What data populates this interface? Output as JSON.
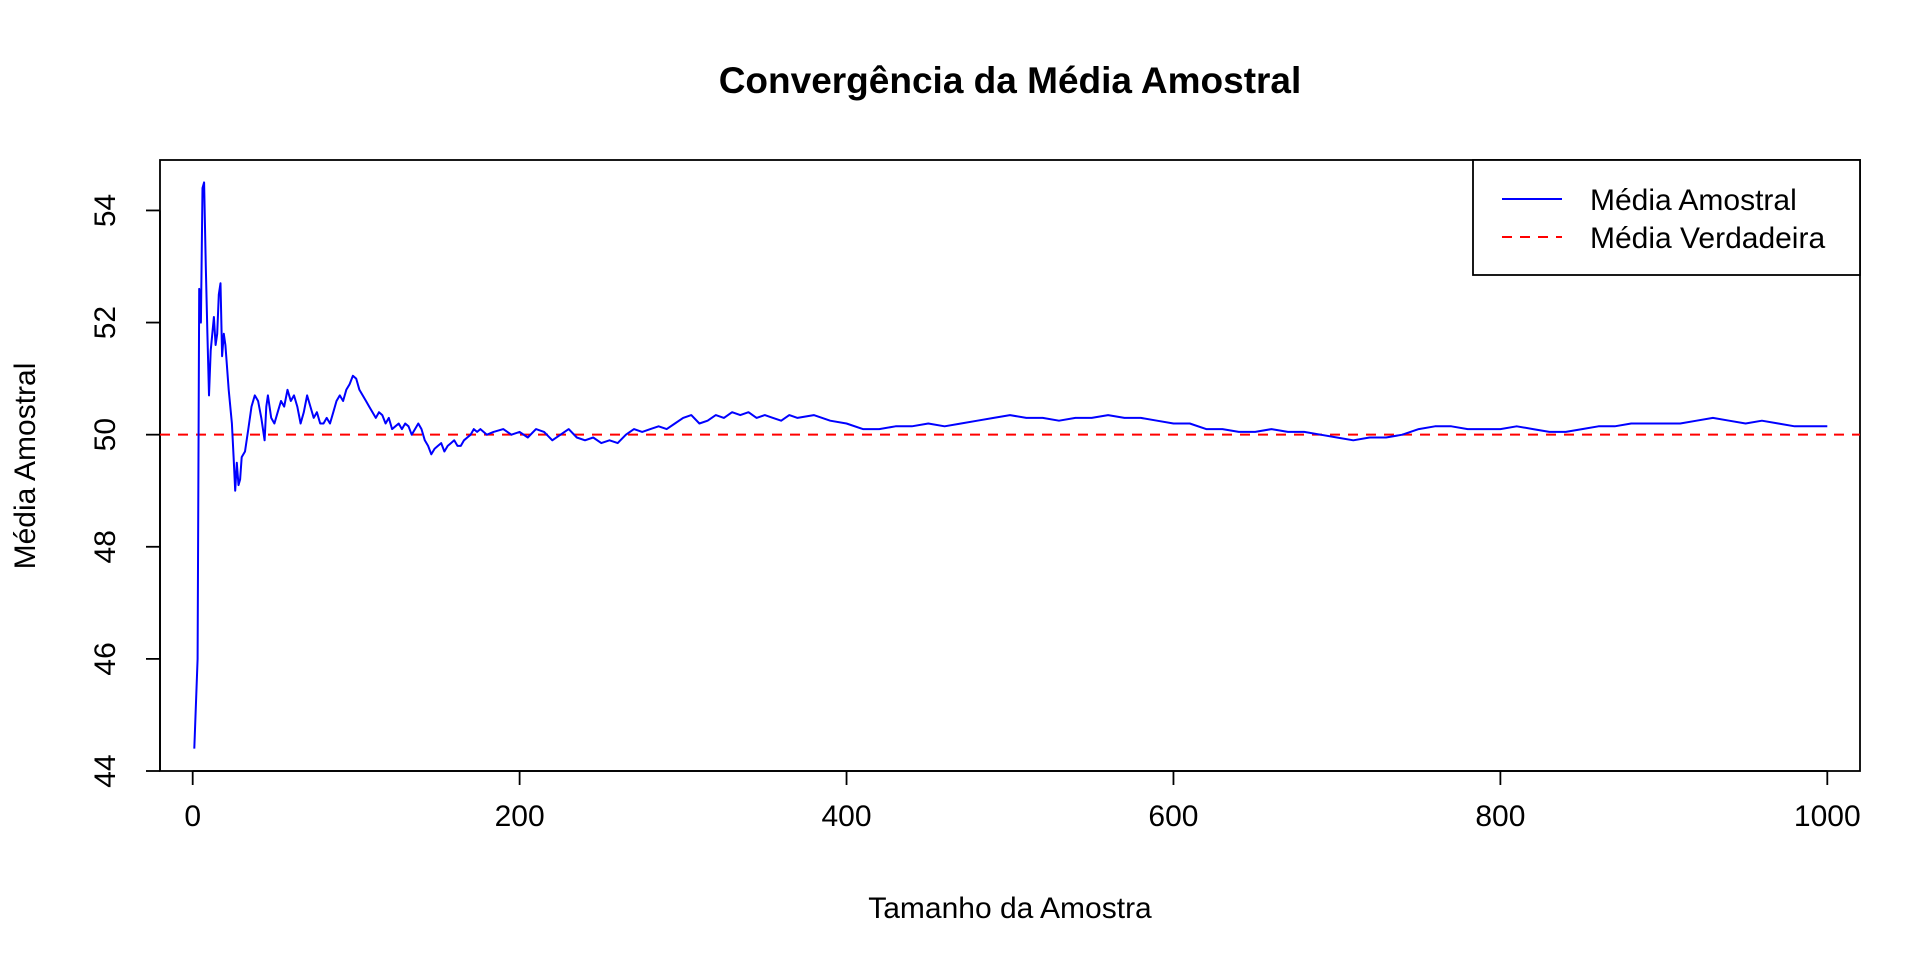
{
  "chart_data": {
    "type": "line",
    "title": "Convergência da Média Amostral",
    "xlabel": "Tamanho da Amostra",
    "ylabel": "Média Amostral",
    "xlim": [
      -20,
      1020
    ],
    "ylim": [
      44,
      54.9
    ],
    "x_ticks": [
      0,
      200,
      400,
      600,
      800,
      1000
    ],
    "y_ticks": [
      44,
      46,
      48,
      50,
      52,
      54
    ],
    "legend_position": "top-right",
    "true_mean": 50,
    "colors": {
      "sample": "#0000ff",
      "true": "#ff0000"
    },
    "series": [
      {
        "name": "Média Amostral",
        "style": "solid",
        "points": [
          [
            1,
            44.4
          ],
          [
            3,
            46
          ],
          [
            4,
            52.6
          ],
          [
            5,
            52
          ],
          [
            6,
            54.4
          ],
          [
            7,
            54.5
          ],
          [
            8,
            53
          ],
          [
            9,
            51.8
          ],
          [
            10,
            50.7
          ],
          [
            11,
            51.5
          ],
          [
            13,
            52.1
          ],
          [
            14,
            51.6
          ],
          [
            15,
            51.8
          ],
          [
            16,
            52.5
          ],
          [
            17,
            52.7
          ],
          [
            18,
            51.4
          ],
          [
            19,
            51.8
          ],
          [
            20,
            51.6
          ],
          [
            22,
            50.8
          ],
          [
            24,
            50.2
          ],
          [
            25,
            49.6
          ],
          [
            26,
            49
          ],
          [
            27,
            49.5
          ],
          [
            28,
            49.1
          ],
          [
            29,
            49.2
          ],
          [
            30,
            49.6
          ],
          [
            32,
            49.7
          ],
          [
            34,
            50.1
          ],
          [
            36,
            50.5
          ],
          [
            38,
            50.7
          ],
          [
            40,
            50.6
          ],
          [
            42,
            50.3
          ],
          [
            44,
            49.9
          ],
          [
            45,
            50.5
          ],
          [
            46,
            50.7
          ],
          [
            48,
            50.3
          ],
          [
            50,
            50.2
          ],
          [
            52,
            50.4
          ],
          [
            54,
            50.6
          ],
          [
            56,
            50.5
          ],
          [
            58,
            50.8
          ],
          [
            60,
            50.6
          ],
          [
            62,
            50.7
          ],
          [
            64,
            50.5
          ],
          [
            66,
            50.2
          ],
          [
            68,
            50.4
          ],
          [
            70,
            50.7
          ],
          [
            72,
            50.5
          ],
          [
            74,
            50.3
          ],
          [
            76,
            50.4
          ],
          [
            78,
            50.2
          ],
          [
            80,
            50.2
          ],
          [
            82,
            50.3
          ],
          [
            84,
            50.2
          ],
          [
            86,
            50.4
          ],
          [
            88,
            50.6
          ],
          [
            90,
            50.7
          ],
          [
            92,
            50.6
          ],
          [
            94,
            50.8
          ],
          [
            96,
            50.9
          ],
          [
            98,
            51.05
          ],
          [
            100,
            51
          ],
          [
            102,
            50.8
          ],
          [
            104,
            50.7
          ],
          [
            106,
            50.6
          ],
          [
            108,
            50.5
          ],
          [
            110,
            50.4
          ],
          [
            112,
            50.3
          ],
          [
            114,
            50.4
          ],
          [
            116,
            50.35
          ],
          [
            118,
            50.2
          ],
          [
            120,
            50.3
          ],
          [
            122,
            50.1
          ],
          [
            124,
            50.15
          ],
          [
            126,
            50.2
          ],
          [
            128,
            50.1
          ],
          [
            130,
            50.2
          ],
          [
            132,
            50.15
          ],
          [
            134,
            50
          ],
          [
            136,
            50.1
          ],
          [
            138,
            50.2
          ],
          [
            140,
            50.1
          ],
          [
            142,
            49.9
          ],
          [
            144,
            49.8
          ],
          [
            146,
            49.65
          ],
          [
            148,
            49.75
          ],
          [
            150,
            49.8
          ],
          [
            152,
            49.85
          ],
          [
            154,
            49.7
          ],
          [
            156,
            49.8
          ],
          [
            158,
            49.85
          ],
          [
            160,
            49.9
          ],
          [
            162,
            49.8
          ],
          [
            164,
            49.8
          ],
          [
            166,
            49.9
          ],
          [
            168,
            49.95
          ],
          [
            170,
            50
          ],
          [
            172,
            50.1
          ],
          [
            174,
            50.05
          ],
          [
            176,
            50.1
          ],
          [
            180,
            50
          ],
          [
            184,
            50.05
          ],
          [
            190,
            50.1
          ],
          [
            195,
            50
          ],
          [
            200,
            50.05
          ],
          [
            205,
            49.95
          ],
          [
            210,
            50.1
          ],
          [
            215,
            50.05
          ],
          [
            220,
            49.9
          ],
          [
            225,
            50
          ],
          [
            230,
            50.1
          ],
          [
            235,
            49.95
          ],
          [
            240,
            49.9
          ],
          [
            245,
            49.95
          ],
          [
            250,
            49.85
          ],
          [
            255,
            49.9
          ],
          [
            260,
            49.85
          ],
          [
            265,
            50
          ],
          [
            270,
            50.1
          ],
          [
            275,
            50.05
          ],
          [
            280,
            50.1
          ],
          [
            285,
            50.15
          ],
          [
            290,
            50.1
          ],
          [
            295,
            50.2
          ],
          [
            300,
            50.3
          ],
          [
            305,
            50.35
          ],
          [
            310,
            50.2
          ],
          [
            315,
            50.25
          ],
          [
            320,
            50.35
          ],
          [
            325,
            50.3
          ],
          [
            330,
            50.4
          ],
          [
            335,
            50.35
          ],
          [
            340,
            50.4
          ],
          [
            345,
            50.3
          ],
          [
            350,
            50.35
          ],
          [
            355,
            50.3
          ],
          [
            360,
            50.25
          ],
          [
            365,
            50.35
          ],
          [
            370,
            50.3
          ],
          [
            380,
            50.35
          ],
          [
            390,
            50.25
          ],
          [
            400,
            50.2
          ],
          [
            410,
            50.1
          ],
          [
            420,
            50.1
          ],
          [
            430,
            50.15
          ],
          [
            440,
            50.15
          ],
          [
            450,
            50.2
          ],
          [
            460,
            50.15
          ],
          [
            470,
            50.2
          ],
          [
            480,
            50.25
          ],
          [
            490,
            50.3
          ],
          [
            500,
            50.35
          ],
          [
            510,
            50.3
          ],
          [
            520,
            50.3
          ],
          [
            530,
            50.25
          ],
          [
            540,
            50.3
          ],
          [
            550,
            50.3
          ],
          [
            560,
            50.35
          ],
          [
            570,
            50.3
          ],
          [
            580,
            50.3
          ],
          [
            590,
            50.25
          ],
          [
            600,
            50.2
          ],
          [
            610,
            50.2
          ],
          [
            620,
            50.1
          ],
          [
            630,
            50.1
          ],
          [
            640,
            50.05
          ],
          [
            650,
            50.05
          ],
          [
            660,
            50.1
          ],
          [
            670,
            50.05
          ],
          [
            680,
            50.05
          ],
          [
            690,
            50
          ],
          [
            700,
            49.95
          ],
          [
            710,
            49.9
          ],
          [
            720,
            49.95
          ],
          [
            730,
            49.95
          ],
          [
            740,
            50
          ],
          [
            750,
            50.1
          ],
          [
            760,
            50.15
          ],
          [
            770,
            50.15
          ],
          [
            780,
            50.1
          ],
          [
            790,
            50.1
          ],
          [
            800,
            50.1
          ],
          [
            810,
            50.15
          ],
          [
            820,
            50.1
          ],
          [
            830,
            50.05
          ],
          [
            840,
            50.05
          ],
          [
            850,
            50.1
          ],
          [
            860,
            50.15
          ],
          [
            870,
            50.15
          ],
          [
            880,
            50.2
          ],
          [
            890,
            50.2
          ],
          [
            900,
            50.2
          ],
          [
            910,
            50.2
          ],
          [
            920,
            50.25
          ],
          [
            930,
            50.3
          ],
          [
            940,
            50.25
          ],
          [
            950,
            50.2
          ],
          [
            960,
            50.25
          ],
          [
            970,
            50.2
          ],
          [
            980,
            50.15
          ],
          [
            990,
            50.15
          ],
          [
            1000,
            50.15
          ]
        ]
      },
      {
        "name": "Média Verdadeira",
        "style": "dashed",
        "value": 50
      }
    ]
  }
}
